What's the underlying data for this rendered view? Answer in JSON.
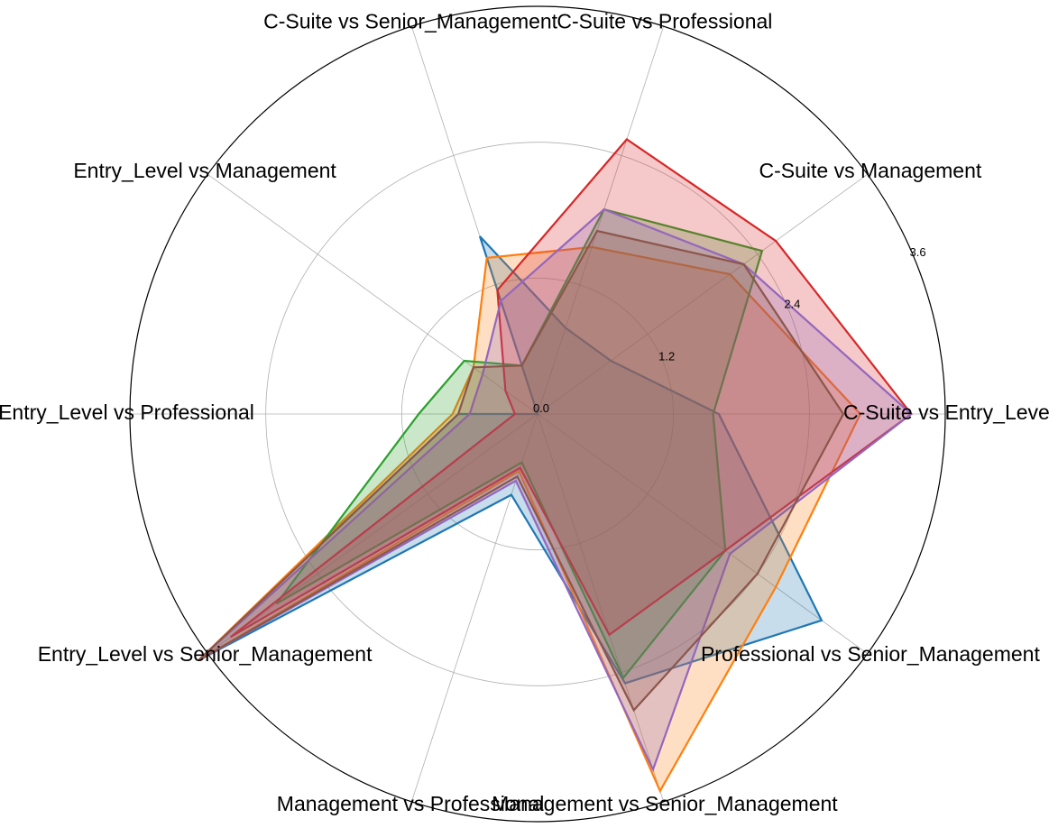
{
  "chart_data": {
    "type": "radar",
    "title": "",
    "categories": [
      "C-Suite vs Entry_Level",
      "C-Suite vs Management",
      "C-Suite vs Professional",
      "C-Suite vs Senior_Management",
      "Entry_Level vs Management",
      "Entry_Level vs Professional",
      "Entry_Level vs Senior_Management",
      "Management vs Professional",
      "Management vs Senior_Management",
      "Professional vs Senior_Management"
    ],
    "r_ticks": [
      0.0,
      1.2,
      2.4,
      3.6
    ],
    "r_tick_labels": [
      "0.0",
      "1.2",
      "2.4",
      "3.6"
    ],
    "rlim": [
      0,
      3.6
    ],
    "grid": true,
    "series": [
      {
        "color": "#1f77b4",
        "values": [
          1.6,
          0.8,
          0.8,
          1.65,
          0.0,
          0.7,
          3.7,
          0.75,
          2.5,
          3.1
        ]
      },
      {
        "color": "#ff7f0e",
        "values": [
          2.85,
          2.1,
          1.55,
          1.45,
          0.7,
          0.75,
          3.7,
          0.53,
          3.5,
          2.6
        ]
      },
      {
        "color": "#2ca02c",
        "values": [
          1.55,
          2.45,
          1.9,
          0.45,
          0.8,
          1.05,
          2.85,
          0.45,
          2.45,
          2.05
        ]
      },
      {
        "color": "#d62728",
        "values": [
          3.3,
          2.6,
          2.55,
          1.15,
          0.35,
          0.2,
          3.35,
          0.5,
          2.05,
          2.05
        ]
      },
      {
        "color": "#9467bd",
        "values": [
          3.3,
          2.25,
          1.9,
          1.05,
          0.6,
          0.6,
          3.7,
          0.62,
          3.3,
          2.1
        ]
      },
      {
        "color": "#8c564b",
        "values": [
          2.7,
          2.25,
          1.7,
          0.45,
          0.7,
          0.7,
          3.7,
          0.58,
          2.75,
          2.4
        ]
      }
    ]
  }
}
